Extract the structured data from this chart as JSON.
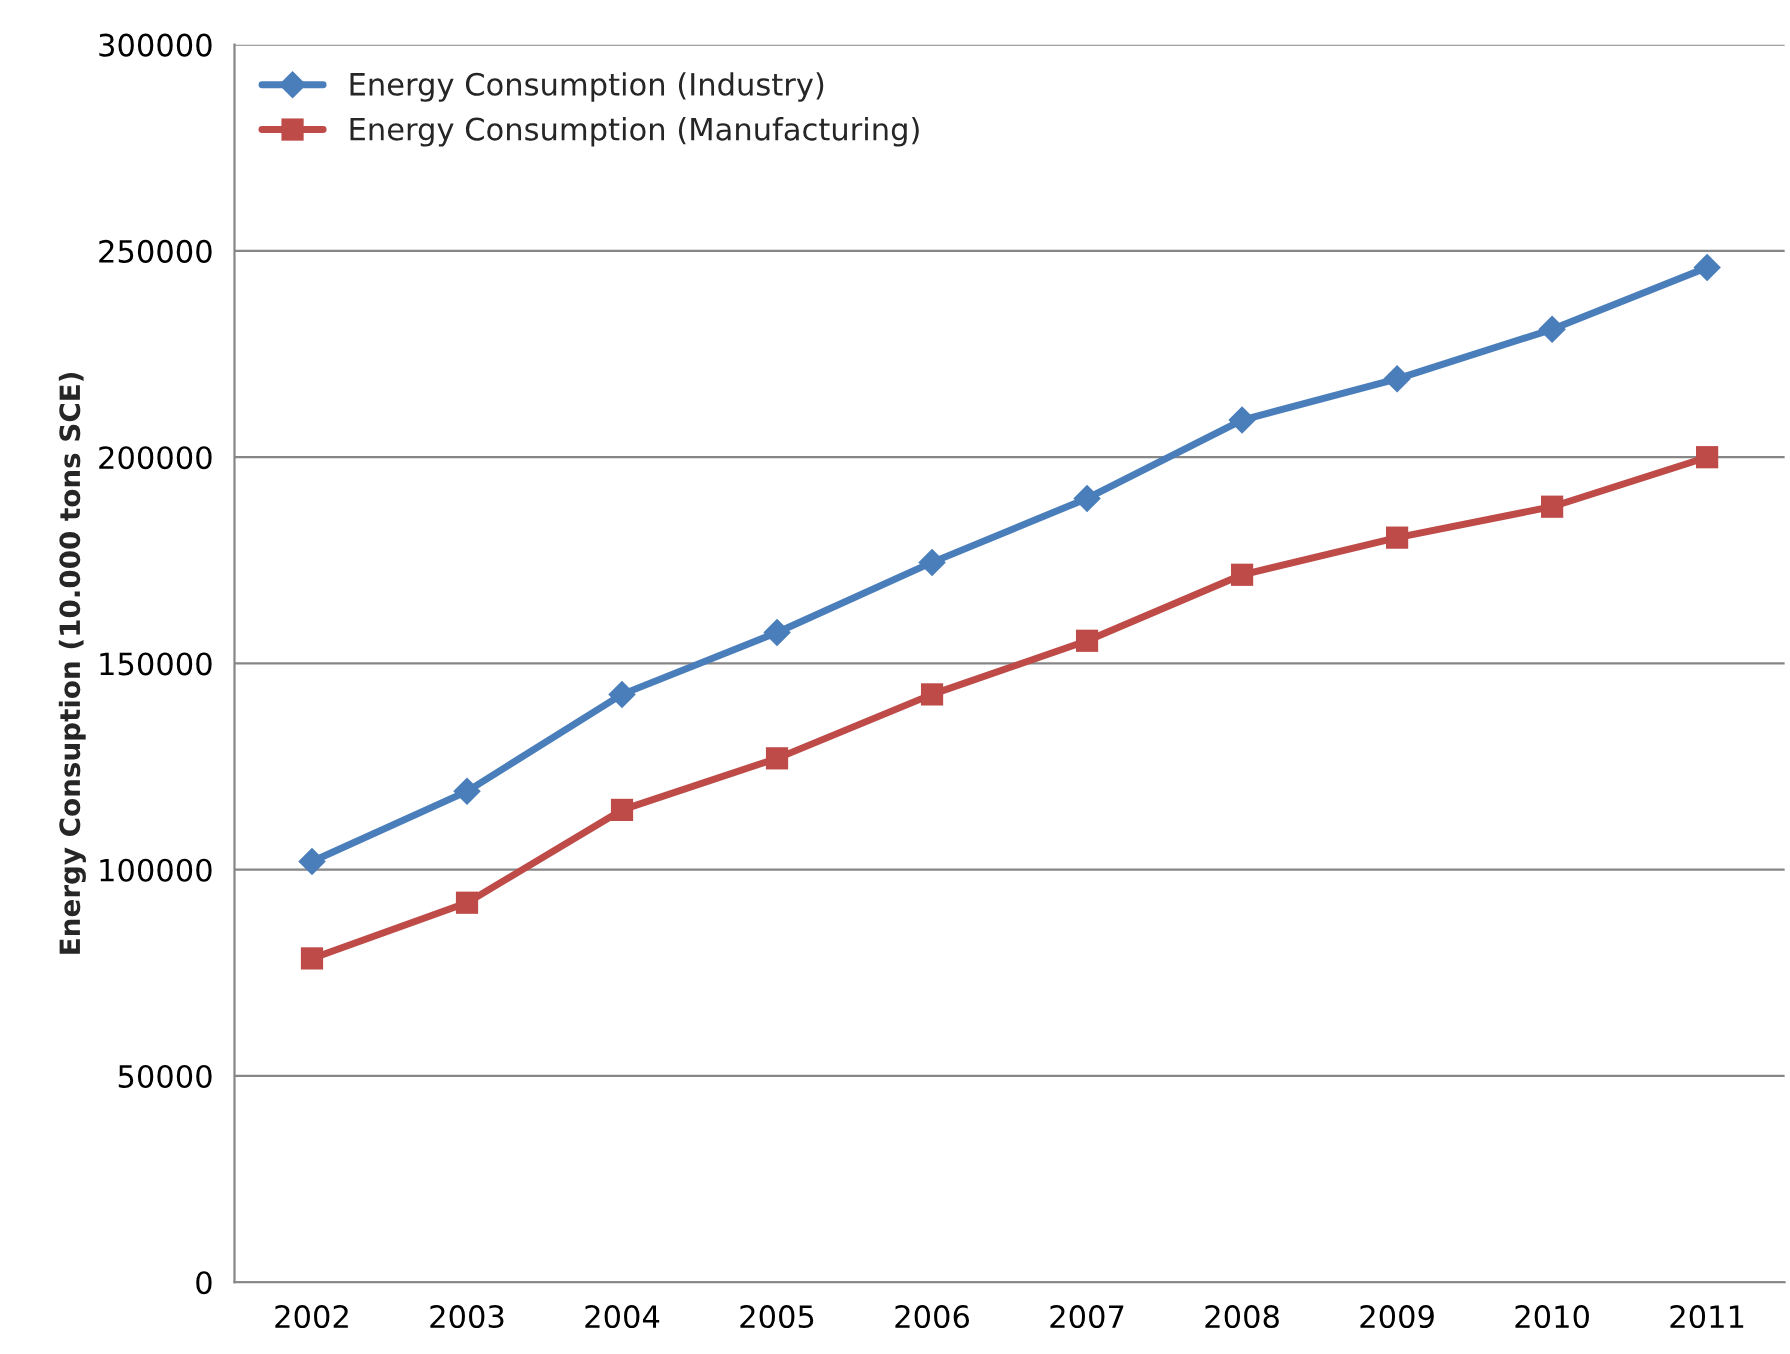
{
  "chart_data": {
    "type": "line",
    "ylabel": "Energy Consuption (10.000 tons SCE)",
    "categories": [
      "2002",
      "2003",
      "2004",
      "2005",
      "2006",
      "2007",
      "2008",
      "2009",
      "2010",
      "2011"
    ],
    "series": [
      {
        "name": "Energy Consumption (Industry)",
        "color": "#4a7ebb",
        "marker": "diamond",
        "values": [
          102000,
          119000,
          142500,
          157500,
          174500,
          190000,
          209000,
          219000,
          231000,
          246000
        ]
      },
      {
        "name": "Energy Consumption (Manufacturing)",
        "color": "#be4b48",
        "marker": "square",
        "values": [
          78500,
          92000,
          114500,
          127000,
          142500,
          155500,
          171500,
          180500,
          188000,
          200000
        ]
      }
    ],
    "ylim": [
      0,
      300000
    ],
    "yticks": [
      0,
      50000,
      100000,
      150000,
      200000,
      250000,
      300000
    ],
    "grid": "y",
    "legend": "top left",
    "line_style": "solid"
  }
}
